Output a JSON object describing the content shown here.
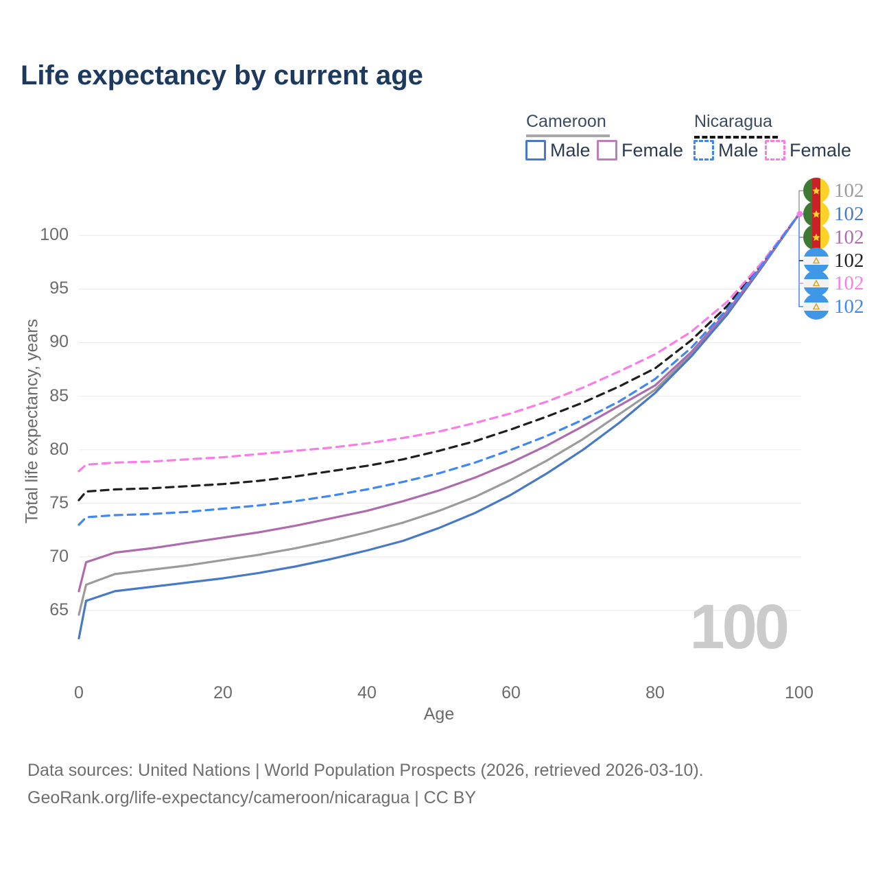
{
  "title": "Life expectancy by current age",
  "watermark": "100",
  "legend": {
    "cameroon": {
      "label": "Cameroon",
      "male": "Male",
      "female": "Female"
    },
    "nicaragua": {
      "label": "Nicaragua",
      "male": "Male",
      "female": "Female"
    }
  },
  "footer": {
    "line1": "Data sources: United Nations | World Population Prospects (2026, retrieved 2026-03-10).",
    "line2": "GeoRank.org/life-expectancy/cameroon/nicaragua | CC BY"
  },
  "colors": {
    "title": "#1d3a5e",
    "grid": "#ebebeb",
    "tick_text": "#6b6b6b",
    "legend_text": "#2c3b52",
    "footer_text": "#6e6e6e",
    "watermark": "#cbcbcb",
    "cameroon_underline": "#a8a8a8",
    "nicaragua_underline": "#151515",
    "end_marker": "#fa7de7"
  },
  "chart_data": {
    "type": "line",
    "title": "Life expectancy by current age",
    "xlabel": "Age",
    "ylabel": "Total life expectancy, years",
    "xlim": [
      0,
      100
    ],
    "ylim": [
      62,
      102
    ],
    "x_ticks": [
      0,
      20,
      40,
      60,
      80,
      100
    ],
    "y_ticks": [
      65,
      70,
      75,
      80,
      85,
      90,
      95,
      100
    ],
    "grid": "horizontal-only",
    "legend_position": "top-right",
    "x": [
      0,
      1,
      5,
      10,
      15,
      20,
      25,
      30,
      35,
      40,
      45,
      50,
      55,
      60,
      65,
      70,
      75,
      80,
      85,
      90,
      95,
      100
    ],
    "series": [
      {
        "id": "cameroon-total",
        "name": "Cameroon",
        "country": "Cameroon",
        "sex": "both",
        "flag": "cameroon",
        "color": "#9b9b9b",
        "dashed": false,
        "end_label": "102",
        "values": [
          64.6,
          67.4,
          68.4,
          68.8,
          69.2,
          69.7,
          70.2,
          70.8,
          71.5,
          72.3,
          73.2,
          74.3,
          75.6,
          77.2,
          79.0,
          81.0,
          83.3,
          85.6,
          88.9,
          92.8,
          97.3,
          102
        ]
      },
      {
        "id": "cameroon-male",
        "name": "Cameroon Male",
        "country": "Cameroon",
        "sex": "male",
        "flag": "cameroon",
        "color": "#4779c4",
        "dashed": false,
        "end_label": "102",
        "values": [
          62.4,
          65.9,
          66.8,
          67.2,
          67.6,
          68.0,
          68.5,
          69.1,
          69.8,
          70.6,
          71.5,
          72.7,
          74.1,
          75.8,
          77.8,
          80.0,
          82.5,
          85.3,
          88.7,
          92.6,
          97.2,
          102
        ]
      },
      {
        "id": "cameroon-female",
        "name": "Cameroon Female",
        "country": "Cameroon",
        "sex": "female",
        "flag": "cameroon",
        "color": "#ae6cae",
        "dashed": false,
        "end_label": "102",
        "values": [
          66.8,
          69.5,
          70.4,
          70.8,
          71.3,
          71.8,
          72.3,
          72.9,
          73.6,
          74.3,
          75.2,
          76.2,
          77.4,
          78.8,
          80.4,
          82.2,
          84.1,
          86.0,
          89.1,
          92.9,
          97.3,
          102
        ]
      },
      {
        "id": "nicaragua-total",
        "name": "Nicaragua",
        "country": "Nicaragua",
        "sex": "both",
        "flag": "nicaragua",
        "color": "#1f1f1f",
        "dashed": true,
        "end_label": "102",
        "values": [
          75.3,
          76.1,
          76.3,
          76.4,
          76.6,
          76.8,
          77.1,
          77.5,
          78.0,
          78.5,
          79.1,
          79.9,
          80.8,
          81.9,
          83.1,
          84.4,
          85.9,
          87.6,
          90.2,
          93.4,
          97.5,
          102
        ]
      },
      {
        "id": "nicaragua-female",
        "name": "Nicaragua Female",
        "country": "Nicaragua",
        "sex": "female",
        "flag": "nicaragua",
        "color": "#fa7de7",
        "dashed": true,
        "end_label": "102",
        "values": [
          78.0,
          78.6,
          78.8,
          78.9,
          79.1,
          79.3,
          79.6,
          79.9,
          80.2,
          80.6,
          81.1,
          81.7,
          82.5,
          83.4,
          84.5,
          85.8,
          87.3,
          88.9,
          91.0,
          93.8,
          97.6,
          102
        ]
      },
      {
        "id": "nicaragua-male",
        "name": "Nicaragua Male",
        "country": "Nicaragua",
        "sex": "male",
        "flag": "nicaragua",
        "color": "#3f87f2",
        "dashed": true,
        "end_label": "102",
        "values": [
          73.0,
          73.7,
          73.9,
          74.0,
          74.2,
          74.5,
          74.8,
          75.2,
          75.7,
          76.3,
          77.0,
          77.8,
          78.8,
          80.0,
          81.3,
          82.8,
          84.5,
          86.6,
          89.5,
          93.1,
          97.4,
          102
        ]
      }
    ],
    "end_label_order": [
      "cameroon-total",
      "cameroon-male",
      "cameroon-female",
      "nicaragua-total",
      "nicaragua-female",
      "nicaragua-male"
    ],
    "convergence_point": {
      "x": 100,
      "y": 102
    }
  }
}
